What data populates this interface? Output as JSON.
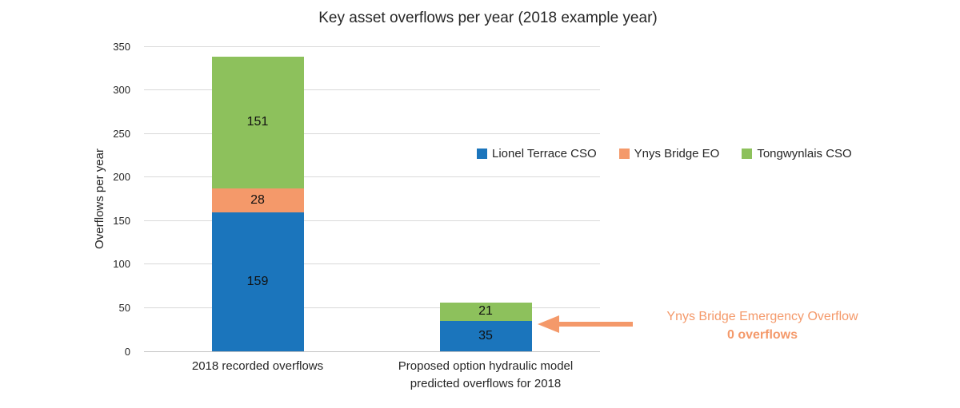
{
  "chart_data": {
    "type": "bar",
    "stacked": true,
    "title": "Key asset overflows per year (2018 example year)",
    "ylabel": "Overflows per year",
    "xlabel": "",
    "ylim": [
      0,
      350
    ],
    "ytick_step": 50,
    "grid": true,
    "legend_position": "middle-right",
    "categories": [
      "2018 recorded overflows",
      "Proposed option hydraulic model\npredicted overflows for 2018"
    ],
    "series": [
      {
        "name": "Lionel Terrace CSO",
        "color": "#1b75bc",
        "values": [
          159,
          35
        ]
      },
      {
        "name": "Ynys Bridge EO",
        "color": "#f4996a",
        "values": [
          28,
          0
        ]
      },
      {
        "name": "Tongwynlais CSO",
        "color": "#8dc15c",
        "values": [
          151,
          21
        ]
      }
    ],
    "totals": [
      338,
      56
    ],
    "annotation": {
      "line1": "Ynys Bridge Emergency Overflow",
      "line2": "0 overflows",
      "color": "#f4996a",
      "arrow_direction": "left",
      "points_to": "Proposed option bar"
    },
    "colors": {
      "grid": "#d9d9d9",
      "axis_line": "#c3c3c3",
      "text": "#262626"
    }
  }
}
